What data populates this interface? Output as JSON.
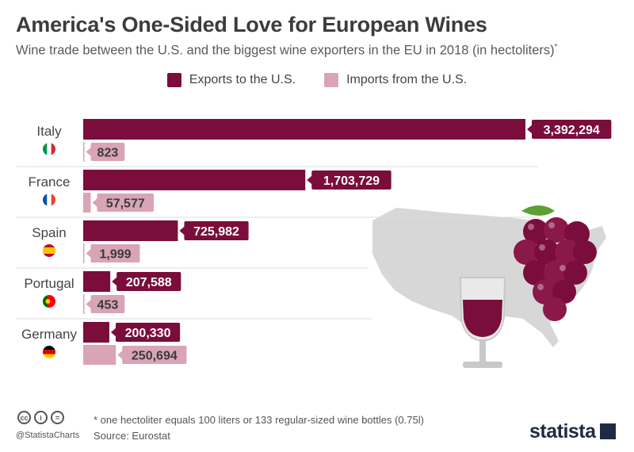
{
  "title": "America's One-Sided Love for European Wines",
  "subtitle": "Wine trade between the U.S. and the biggest wine exporters in the EU in 2018 (in hectoliters)",
  "subtitle_mark": "*",
  "legend": [
    {
      "label": "Exports to the U.S.",
      "color": "#7a0d3c"
    },
    {
      "label": "Imports from the U.S.",
      "color": "#d9a4b6"
    }
  ],
  "chart_data": {
    "type": "bar",
    "orientation": "horizontal",
    "categories": [
      "Italy",
      "France",
      "Spain",
      "Portugal",
      "Germany"
    ],
    "series": [
      {
        "name": "Exports to the U.S.",
        "values": [
          3392294,
          1703729,
          725982,
          207588,
          200330
        ],
        "labels": [
          "3,392,294",
          "1,703,729",
          "725,982",
          "207,588",
          "200,330"
        ],
        "color": "#7a0d3c"
      },
      {
        "name": "Imports from the U.S.",
        "values": [
          823,
          57577,
          1999,
          453,
          250694
        ],
        "labels": [
          "823",
          "57,577",
          "1,999",
          "453",
          "250,694"
        ],
        "color": "#d9a4b6"
      }
    ],
    "xlim": [
      0,
      3392294
    ],
    "flags": [
      "italy-flag-icon",
      "france-flag-icon",
      "spain-flag-icon",
      "portugal-flag-icon",
      "germany-flag-icon"
    ]
  },
  "footer": {
    "handle": "@StatistaCharts",
    "note": "* one hectoliter equals 100 liters or 133 regular-sized wine bottles (0.75l)",
    "source": "Source: Eurostat",
    "brand": "statista"
  }
}
